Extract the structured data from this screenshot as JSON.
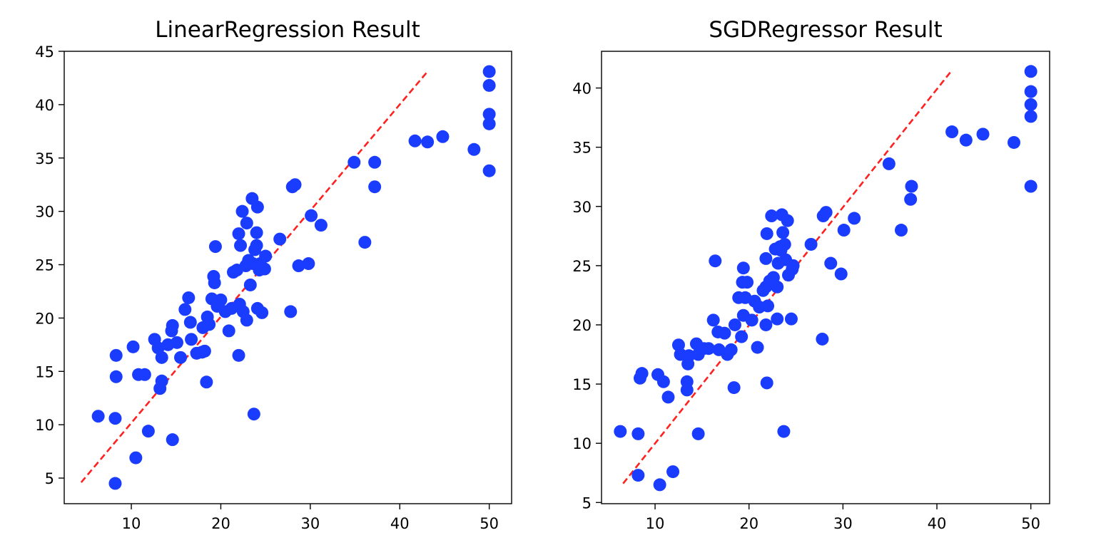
{
  "colors": {
    "points": "#1a3cff",
    "fit_line": "#ff2020",
    "axes": "#000000",
    "background": "#ffffff"
  },
  "chart_data": [
    {
      "type": "scatter",
      "title": "LinearRegression Result",
      "xlabel": "",
      "ylabel": "",
      "xlim": [
        2.5,
        52.5
      ],
      "ylim": [
        2.6,
        45
      ],
      "xticks": [
        10,
        20,
        30,
        40,
        50
      ],
      "yticks": [
        5,
        10,
        15,
        20,
        25,
        30,
        35,
        40,
        45
      ],
      "grid": false,
      "reference_line": {
        "style": "dashed",
        "x": [
          4.4,
          43.1
        ],
        "y": [
          4.6,
          43.1
        ]
      },
      "points": [
        [
          8.2,
          4.5
        ],
        [
          10.5,
          6.9
        ],
        [
          14.6,
          8.6
        ],
        [
          11.9,
          9.4
        ],
        [
          6.3,
          10.8
        ],
        [
          8.2,
          10.6
        ],
        [
          23.7,
          11.0
        ],
        [
          13.2,
          13.4
        ],
        [
          13.4,
          14.1
        ],
        [
          18.4,
          14.0
        ],
        [
          8.3,
          14.5
        ],
        [
          10.8,
          14.7
        ],
        [
          11.5,
          14.7
        ],
        [
          8.3,
          16.5
        ],
        [
          10.2,
          17.3
        ],
        [
          12.6,
          18.0
        ],
        [
          13.0,
          17.2
        ],
        [
          13.4,
          16.3
        ],
        [
          14.1,
          17.5
        ],
        [
          14.5,
          18.8
        ],
        [
          14.6,
          19.3
        ],
        [
          15.1,
          17.7
        ],
        [
          15.5,
          16.3
        ],
        [
          16.0,
          20.8
        ],
        [
          16.4,
          21.9
        ],
        [
          16.7,
          18.0
        ],
        [
          16.6,
          19.6
        ],
        [
          17.3,
          16.7
        ],
        [
          17.9,
          16.8
        ],
        [
          18.2,
          16.9
        ],
        [
          18.0,
          19.1
        ],
        [
          18.5,
          20.1
        ],
        [
          18.7,
          19.4
        ],
        [
          19.0,
          21.8
        ],
        [
          19.2,
          23.9
        ],
        [
          19.3,
          23.3
        ],
        [
          19.4,
          26.7
        ],
        [
          19.6,
          21.1
        ],
        [
          20.0,
          21.7
        ],
        [
          20.5,
          20.6
        ],
        [
          20.9,
          18.8
        ],
        [
          21.2,
          20.9
        ],
        [
          21.4,
          24.3
        ],
        [
          21.8,
          24.5
        ],
        [
          22.0,
          27.9
        ],
        [
          22.2,
          26.8
        ],
        [
          22.4,
          30.0
        ],
        [
          22.0,
          16.5
        ],
        [
          22.1,
          21.3
        ],
        [
          22.5,
          20.6
        ],
        [
          22.8,
          24.9
        ],
        [
          22.9,
          28.9
        ],
        [
          22.9,
          19.8
        ],
        [
          23.1,
          25.4
        ],
        [
          23.3,
          23.1
        ],
        [
          23.5,
          31.2
        ],
        [
          23.6,
          25.1
        ],
        [
          23.8,
          26.4
        ],
        [
          24.0,
          28.0
        ],
        [
          24.0,
          26.8
        ],
        [
          24.1,
          30.4
        ],
        [
          24.1,
          20.9
        ],
        [
          24.3,
          24.5
        ],
        [
          24.4,
          25.1
        ],
        [
          24.6,
          20.5
        ],
        [
          24.9,
          24.6
        ],
        [
          25.0,
          25.8
        ],
        [
          26.6,
          27.4
        ],
        [
          27.8,
          20.6
        ],
        [
          28.0,
          32.3
        ],
        [
          28.3,
          32.5
        ],
        [
          28.7,
          24.9
        ],
        [
          29.8,
          25.1
        ],
        [
          30.1,
          29.6
        ],
        [
          31.2,
          28.7
        ],
        [
          34.9,
          34.6
        ],
        [
          36.1,
          27.1
        ],
        [
          37.2,
          34.6
        ],
        [
          37.2,
          32.3
        ],
        [
          41.7,
          36.6
        ],
        [
          43.1,
          36.5
        ],
        [
          44.8,
          37.0
        ],
        [
          48.3,
          35.8
        ],
        [
          50.0,
          43.1
        ],
        [
          50.0,
          41.8
        ],
        [
          50.0,
          39.1
        ],
        [
          50.0,
          38.2
        ],
        [
          50.0,
          33.8
        ]
      ]
    },
    {
      "type": "scatter",
      "title": "SGDRegressor Result",
      "xlabel": "",
      "ylabel": "",
      "xlim": [
        4.3,
        52.0
      ],
      "ylim": [
        4.9,
        43.1
      ],
      "xticks": [
        10,
        20,
        30,
        40,
        50
      ],
      "yticks": [
        5,
        10,
        15,
        20,
        25,
        30,
        35,
        40
      ],
      "grid": false,
      "reference_line": {
        "style": "dashed",
        "x": [
          6.6,
          41.6
        ],
        "y": [
          6.6,
          41.5
        ]
      },
      "points": [
        [
          10.5,
          6.5
        ],
        [
          8.2,
          7.3
        ],
        [
          11.9,
          7.6
        ],
        [
          6.3,
          11.0
        ],
        [
          8.2,
          10.8
        ],
        [
          14.6,
          10.8
        ],
        [
          23.7,
          11.0
        ],
        [
          11.4,
          13.9
        ],
        [
          13.4,
          14.5
        ],
        [
          13.4,
          15.2
        ],
        [
          8.4,
          15.5
        ],
        [
          8.6,
          15.9
        ],
        [
          10.3,
          15.8
        ],
        [
          10.9,
          15.2
        ],
        [
          18.4,
          14.7
        ],
        [
          21.9,
          15.1
        ],
        [
          12.5,
          18.3
        ],
        [
          12.7,
          17.5
        ],
        [
          13.5,
          16.7
        ],
        [
          13.6,
          17.4
        ],
        [
          14.4,
          18.4
        ],
        [
          14.6,
          17.5
        ],
        [
          15.2,
          18.0
        ],
        [
          15.7,
          18.0
        ],
        [
          16.2,
          20.4
        ],
        [
          16.7,
          19.4
        ],
        [
          16.4,
          25.4
        ],
        [
          16.8,
          17.9
        ],
        [
          17.4,
          19.3
        ],
        [
          17.7,
          17.5
        ],
        [
          18.1,
          17.9
        ],
        [
          18.5,
          20.0
        ],
        [
          18.9,
          22.3
        ],
        [
          19.2,
          19.0
        ],
        [
          19.4,
          20.8
        ],
        [
          19.4,
          24.8
        ],
        [
          19.3,
          23.6
        ],
        [
          19.6,
          22.3
        ],
        [
          19.8,
          23.6
        ],
        [
          20.3,
          20.4
        ],
        [
          20.6,
          22.0
        ],
        [
          20.9,
          18.1
        ],
        [
          21.1,
          21.5
        ],
        [
          21.5,
          22.9
        ],
        [
          21.8,
          23.2
        ],
        [
          21.8,
          20.0
        ],
        [
          21.8,
          25.6
        ],
        [
          21.9,
          27.7
        ],
        [
          22.0,
          21.6
        ],
        [
          22.2,
          23.7
        ],
        [
          22.4,
          29.2
        ],
        [
          22.6,
          24.0
        ],
        [
          22.8,
          26.4
        ],
        [
          23.0,
          20.5
        ],
        [
          23.0,
          23.2
        ],
        [
          23.1,
          25.2
        ],
        [
          23.3,
          26.6
        ],
        [
          23.4,
          26.3
        ],
        [
          23.5,
          29.3
        ],
        [
          23.6,
          27.8
        ],
        [
          23.8,
          26.8
        ],
        [
          23.9,
          25.5
        ],
        [
          24.1,
          28.8
        ],
        [
          24.2,
          24.2
        ],
        [
          24.5,
          20.5
        ],
        [
          24.6,
          24.7
        ],
        [
          24.7,
          25.0
        ],
        [
          26.6,
          26.8
        ],
        [
          27.8,
          18.8
        ],
        [
          27.9,
          29.2
        ],
        [
          28.2,
          29.5
        ],
        [
          28.7,
          25.2
        ],
        [
          29.8,
          24.3
        ],
        [
          30.1,
          28.0
        ],
        [
          31.2,
          29.0
        ],
        [
          34.9,
          33.6
        ],
        [
          36.2,
          28.0
        ],
        [
          37.2,
          30.6
        ],
        [
          37.3,
          31.7
        ],
        [
          41.6,
          36.3
        ],
        [
          43.1,
          35.6
        ],
        [
          44.9,
          36.1
        ],
        [
          48.2,
          35.4
        ],
        [
          50.0,
          41.4
        ],
        [
          50.0,
          39.7
        ],
        [
          50.0,
          38.6
        ],
        [
          50.0,
          37.6
        ],
        [
          50.0,
          31.7
        ]
      ]
    }
  ]
}
